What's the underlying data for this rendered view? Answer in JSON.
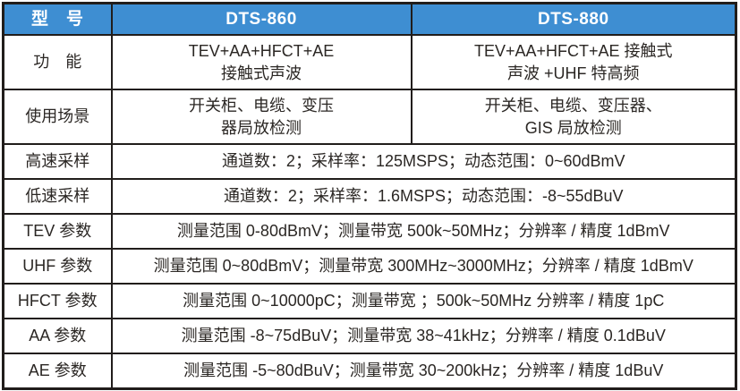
{
  "table": {
    "header": {
      "model": "型　号",
      "dts860": "DTS-860",
      "dts880": "DTS-880"
    },
    "function_row": {
      "label": "功　能",
      "dts860_line1": "TEV+AA+HFCT+AE",
      "dts860_line2": "接触式声波",
      "dts880_line1": "TEV+AA+HFCT+AE 接触式",
      "dts880_line2": "声波 +UHF 特高频"
    },
    "scenario_row": {
      "label": "使用场景",
      "dts860_line1": "开关柜、电缆、变压",
      "dts860_line2": "器局放检测",
      "dts880_line1": "开关柜、电缆、变压器、",
      "dts880_line2": "GIS 局放检测"
    },
    "spec_rows": [
      {
        "label": "高速采样",
        "value": "通道数：2；采样率：125MSPS；动态范围：0~60dBmV"
      },
      {
        "label": "低速采样",
        "value": "通道数：2；采样率：1.6MSPS；动态范围：-8~55dBuV"
      },
      {
        "label": "TEV 参数",
        "value": "测量范围 0-80dBmV；测量带宽 500k~50MHz；分辨率 / 精度 1dBmV"
      },
      {
        "label": "UHF 参数",
        "value": "测量范围 0~80dBmV；测量带宽 300MHz~3000MHz；分辨率 / 精度 1dBmV"
      },
      {
        "label": "HFCT 参数",
        "value": "测量范围 0~10000pC；测量带宽 ；500k~50MHz 分辨率 / 精度 1pC"
      },
      {
        "label": "AA 参数",
        "value": "测量范围 -8~75dBuV；测量带宽 38~41kHz；分辨率 / 精度 0.1dBuV"
      },
      {
        "label": "AE 参数",
        "value": "测量范围 -5~80dBuV；测量带宽 30~200kHz；分辨率 / 精度 1dBuV"
      }
    ],
    "colors": {
      "header_bg": "#3E8ED2",
      "header_text": "#FFFFFF",
      "border": "#211D1B",
      "body_text": "#2B2724"
    }
  }
}
